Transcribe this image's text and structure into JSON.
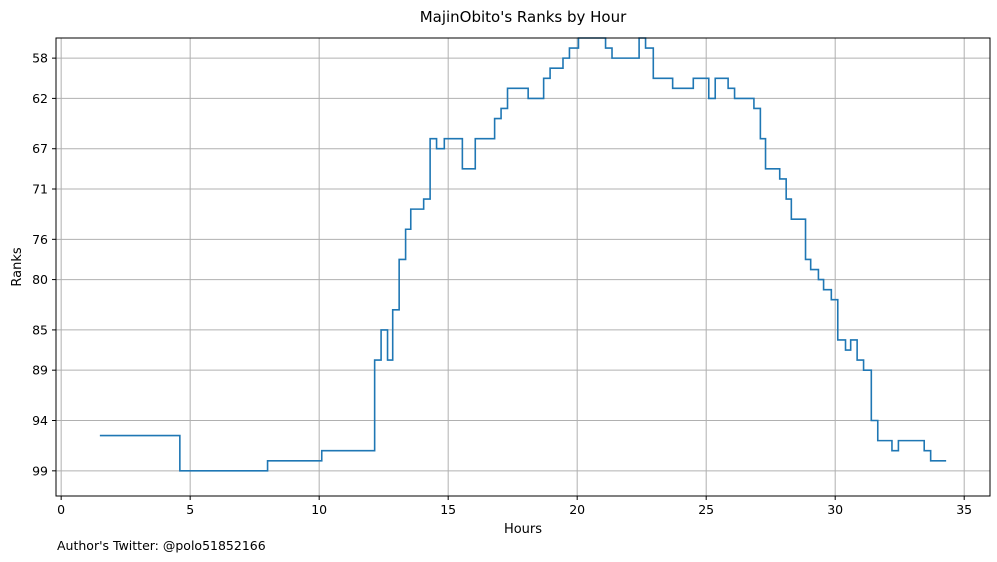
{
  "chart_data": {
    "type": "line",
    "step": true,
    "title": "MajinObito's Ranks by Hour",
    "xlabel": "Hours",
    "ylabel": "Ranks",
    "xlim": [
      -0.2,
      36.0
    ],
    "ylim": [
      101.5,
      56.0
    ],
    "y_inverted": true,
    "grid": true,
    "line_color": "#1f77b4",
    "x_ticks": [
      0,
      5,
      10,
      15,
      20,
      25,
      30,
      35
    ],
    "x_tick_labels": [
      "0",
      "5",
      "10",
      "15",
      "20",
      "25",
      "30",
      "35"
    ],
    "y_ticks": [
      58,
      62,
      67,
      71,
      76,
      80,
      85,
      89,
      94,
      99
    ],
    "y_tick_labels": [
      "58",
      "62",
      "67",
      "71",
      "76",
      "80",
      "85",
      "89",
      "94",
      "99"
    ],
    "series": [
      {
        "points": [
          [
            1.5,
            95.5
          ],
          [
            4.6,
            99.0
          ],
          [
            8.0,
            98.0
          ],
          [
            10.1,
            97.0
          ],
          [
            12.15,
            88.0
          ],
          [
            12.4,
            85.0
          ],
          [
            12.65,
            88.0
          ],
          [
            12.85,
            83.0
          ],
          [
            13.1,
            78.0
          ],
          [
            13.35,
            75.0
          ],
          [
            13.55,
            73.0
          ],
          [
            14.05,
            72.0
          ],
          [
            14.3,
            66.0
          ],
          [
            14.55,
            67.0
          ],
          [
            14.85,
            66.0
          ],
          [
            15.55,
            69.0
          ],
          [
            16.05,
            66.0
          ],
          [
            16.8,
            64.0
          ],
          [
            17.05,
            63.0
          ],
          [
            17.3,
            61.0
          ],
          [
            18.1,
            62.0
          ],
          [
            18.7,
            60.0
          ],
          [
            18.95,
            59.0
          ],
          [
            19.45,
            58.0
          ],
          [
            19.7,
            57.0
          ],
          [
            20.05,
            56.0
          ],
          [
            20.6,
            56.0
          ],
          [
            21.1,
            57.0
          ],
          [
            21.35,
            58.0
          ],
          [
            22.4,
            56.0
          ],
          [
            22.65,
            57.0
          ],
          [
            22.95,
            60.0
          ],
          [
            23.7,
            61.0
          ],
          [
            24.5,
            60.0
          ],
          [
            25.1,
            62.0
          ],
          [
            25.35,
            60.0
          ],
          [
            25.85,
            61.0
          ],
          [
            26.1,
            62.0
          ],
          [
            26.85,
            63.0
          ],
          [
            27.1,
            66.0
          ],
          [
            27.3,
            69.0
          ],
          [
            27.85,
            70.0
          ],
          [
            28.1,
            72.0
          ],
          [
            28.3,
            74.0
          ],
          [
            28.85,
            78.0
          ],
          [
            29.05,
            79.0
          ],
          [
            29.35,
            80.0
          ],
          [
            29.55,
            81.0
          ],
          [
            29.85,
            82.0
          ],
          [
            30.1,
            86.0
          ],
          [
            30.4,
            87.0
          ],
          [
            30.6,
            86.0
          ],
          [
            30.85,
            88.0
          ],
          [
            31.1,
            89.0
          ],
          [
            31.4,
            94.0
          ],
          [
            31.65,
            96.0
          ],
          [
            32.2,
            97.0
          ],
          [
            32.45,
            96.0
          ],
          [
            33.45,
            97.0
          ],
          [
            33.7,
            98.0
          ],
          [
            34.3,
            98.0
          ]
        ]
      }
    ]
  },
  "footer": {
    "author_text": "Author's Twitter: @polo51852166"
  }
}
